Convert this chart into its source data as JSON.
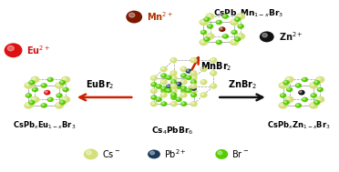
{
  "bg_color": "#ffffff",
  "fig_width": 3.72,
  "fig_height": 1.89,
  "dpi": 100,
  "cs_color": "#d4e07a",
  "cs_color2": "#c8d870",
  "br_color": "#55cc00",
  "br_color2": "#44aa00",
  "pb_color": "#1a3a5c",
  "pb_color2": "#0d2040",
  "mn_color": "#7a1800",
  "mn_color2": "#5a0800",
  "eu_color": "#dd1111",
  "eu_color2": "#aa0000",
  "zn_color": "#111111",
  "zn_color2": "#333333",
  "bond_color": "#999999",
  "dashed_color": "#aaaaaa",
  "arrow_color_red": "#cc2200",
  "arrow_color_black": "#111111",
  "labels": {
    "mn_ion": "Mn$^{2+}$",
    "eu_ion": "Eu$^{2+}$",
    "zn_ion": "Zn$^{2+}$",
    "mnbr2": "MnBr$_2$",
    "eubr2": "EuBr$_2$",
    "znbr2": "ZnBr$_2$",
    "top_crystal": "CsPb$_x$Mn$_{1-x}$Br$_3$",
    "left_crystal": "CsPb$_x$Eu$_{1-x}$Br$_3$",
    "center_crystal": "Cs$_4$PbBr$_6$",
    "right_crystal": "CsPb$_x$Zn$_{1-x}$Br$_3$",
    "cs_label": "Cs$^-$",
    "pb_label": "Pb$^{2+}$",
    "br_label": "Br$^-$"
  }
}
